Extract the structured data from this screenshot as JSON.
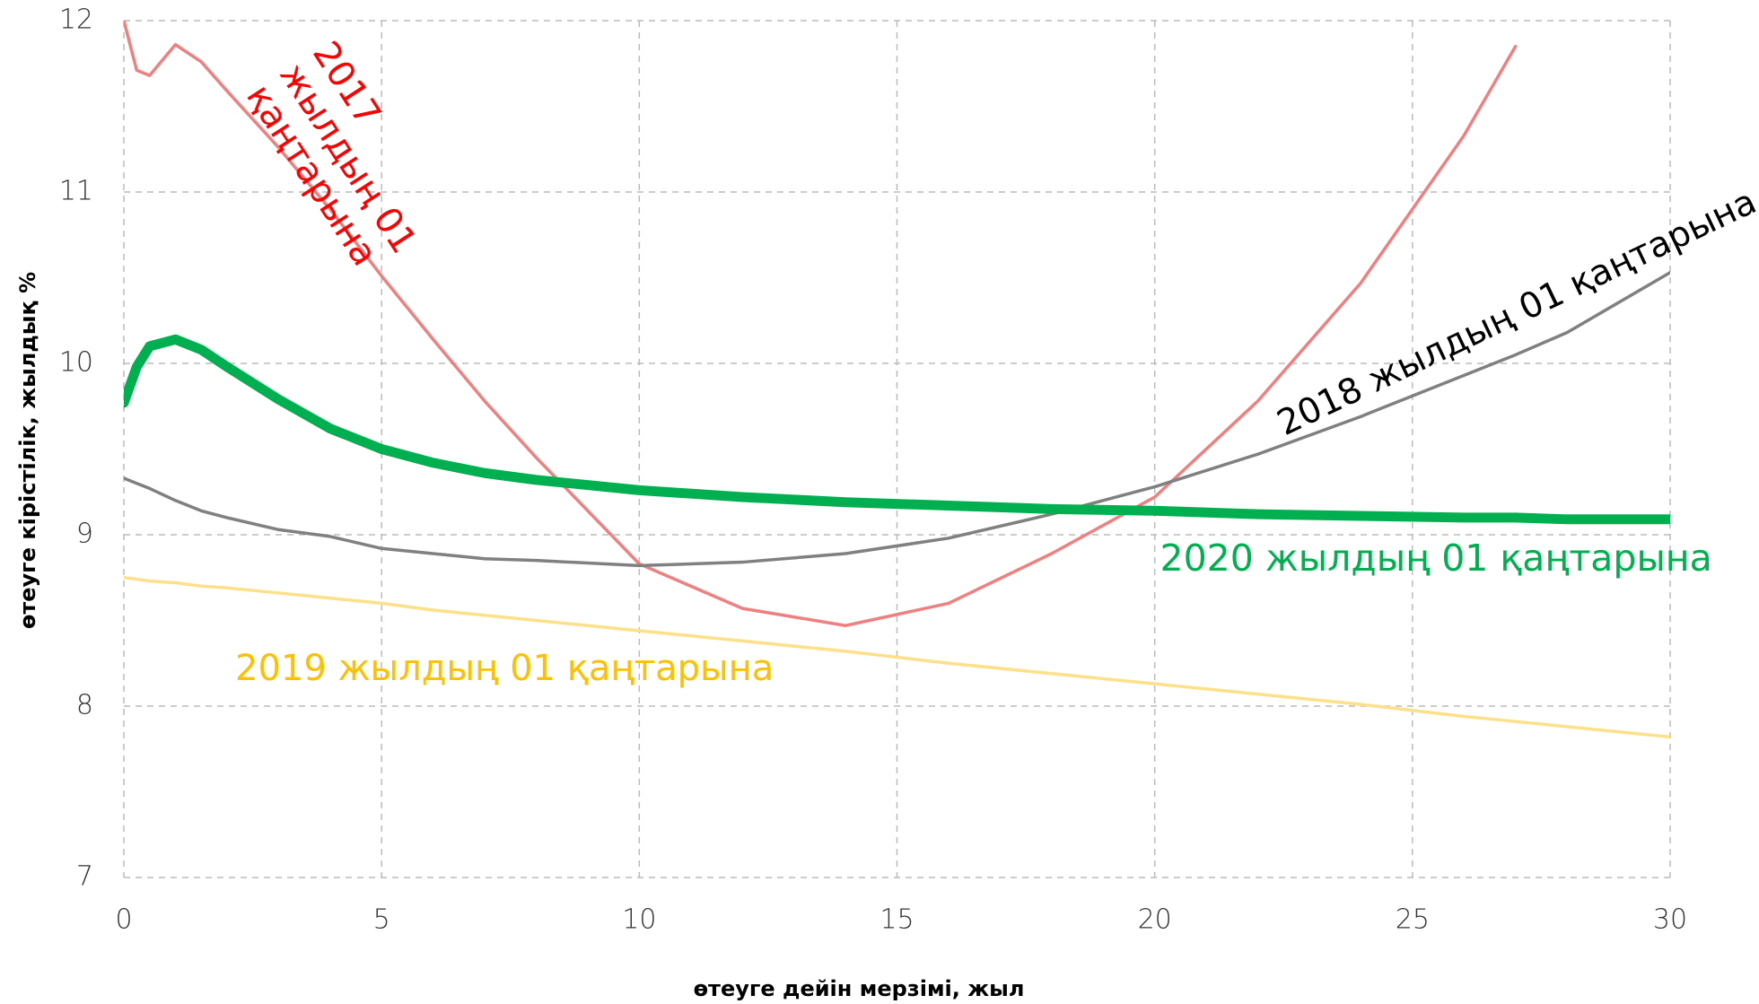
{
  "chart_data": {
    "type": "line",
    "x_label": "өтеуге дейін мерзімі, жыл",
    "y_label": "өтеуге кірістілік, жылдық %",
    "x": [
      0,
      0.25,
      0.5,
      1,
      1.5,
      2,
      3,
      4,
      5,
      6,
      7,
      8,
      10,
      12,
      14,
      16,
      18,
      20,
      22,
      24,
      26,
      27,
      28,
      30
    ],
    "series": [
      {
        "name": "2017 жылдың 01 қаңтарына",
        "color": "#f08080",
        "label_color": "#ff0000",
        "width": 3.5,
        "values": [
          12.0,
          11.71,
          11.68,
          11.86,
          11.76,
          11.59,
          11.26,
          10.9,
          10.51,
          10.14,
          9.78,
          9.45,
          8.83,
          8.57,
          8.47,
          8.6,
          8.89,
          9.22,
          9.78,
          10.47,
          11.33,
          11.85,
          null,
          null
        ]
      },
      {
        "name": "2018 жылдың 01 қаңтарына",
        "color": "#808080",
        "label_color": "#000000",
        "width": 3.5,
        "values": [
          9.33,
          9.3,
          9.27,
          9.2,
          9.14,
          9.1,
          9.03,
          8.99,
          8.92,
          8.89,
          8.86,
          8.85,
          8.82,
          8.84,
          8.89,
          8.98,
          9.12,
          9.28,
          9.47,
          9.69,
          9.93,
          10.05,
          10.18,
          10.53
        ]
      },
      {
        "name": "2019 жылдың 01 қаңтарына",
        "color": "#ffe08a",
        "label_color": "#ffc000",
        "width": 3.5,
        "values": [
          8.75,
          8.74,
          8.73,
          8.72,
          8.7,
          8.69,
          8.66,
          8.63,
          8.6,
          8.56,
          8.53,
          8.5,
          8.44,
          8.38,
          8.32,
          8.25,
          8.19,
          8.13,
          8.07,
          8.01,
          7.94,
          7.91,
          7.88,
          7.82
        ]
      },
      {
        "name": "2020 жылдың 01 қаңтарына",
        "color": "#00b050",
        "label_color": "#00b050",
        "width": 11,
        "values": [
          9.77,
          9.98,
          10.1,
          10.14,
          10.08,
          9.98,
          9.79,
          9.62,
          9.5,
          9.42,
          9.36,
          9.32,
          9.26,
          9.22,
          9.19,
          9.17,
          9.15,
          9.14,
          9.12,
          9.11,
          9.1,
          9.1,
          9.09,
          9.09
        ]
      }
    ],
    "xlim": [
      0,
      30
    ],
    "xticks": [
      0,
      5,
      10,
      15,
      20,
      25,
      30
    ],
    "ylim": [
      7,
      12
    ],
    "yticks": [
      7,
      8,
      9,
      10,
      11,
      12
    ],
    "grid": true
  }
}
